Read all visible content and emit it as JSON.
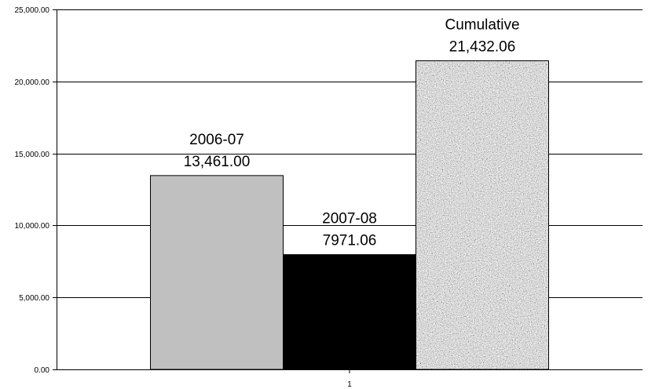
{
  "chart_data": {
    "type": "bar",
    "categories": [
      "1"
    ],
    "series": [
      {
        "name": "2006-07",
        "values": [
          13461.0
        ],
        "label_value": "13,461.00",
        "color": "#c0c0c0",
        "pattern": "solid"
      },
      {
        "name": "2007-08",
        "values": [
          7971.06
        ],
        "label_value": "7971.06",
        "color": "#000000",
        "pattern": "solid"
      },
      {
        "name": "Cumulative",
        "values": [
          21432.06
        ],
        "label_value": "21,432.06",
        "color": "#a8a8a8",
        "pattern": "granite"
      }
    ],
    "y_ticks": [
      "0.00",
      "5,000.00",
      "10,000.00",
      "15,000.00",
      "20,000.00",
      "25,000.00"
    ],
    "ylim": [
      0,
      25000
    ],
    "grid": true,
    "legend": "none",
    "title": "",
    "xlabel": "",
    "ylabel": ""
  }
}
